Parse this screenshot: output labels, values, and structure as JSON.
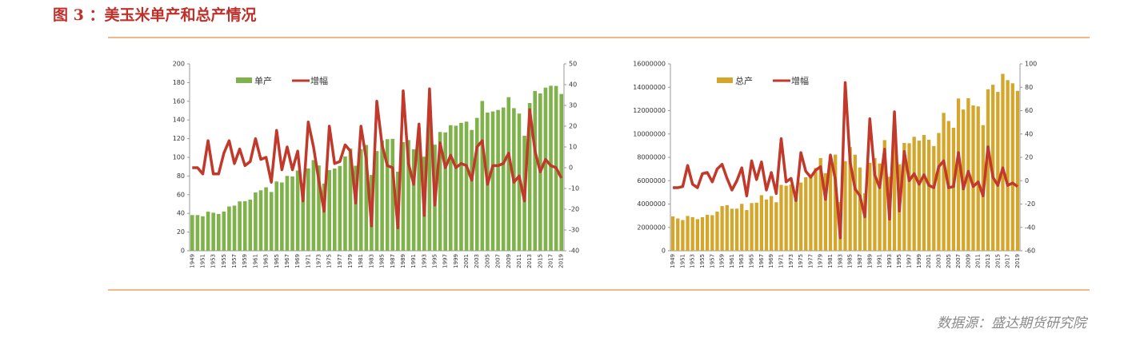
{
  "title": "图 3 ：美玉米单产和总产情况",
  "source": "数据源：盛达期货研究院",
  "charts": [
    {
      "chart_data": {
        "type": "bar-line",
        "categories": [
          "1949",
          null,
          "1951",
          null,
          "1953",
          null,
          "1955",
          null,
          "1957",
          null,
          "1959",
          null,
          "1961",
          null,
          "1963",
          null,
          "1965",
          null,
          "1967",
          null,
          "1969",
          null,
          "1971",
          null,
          "1973",
          null,
          "1975",
          null,
          "1977",
          null,
          "1979",
          null,
          "1981",
          null,
          "1983",
          null,
          "1985",
          null,
          "1987",
          null,
          "1989",
          null,
          "1991",
          null,
          "1993",
          null,
          "1995",
          null,
          "1997",
          null,
          "1999",
          null,
          "2001",
          null,
          "2003",
          null,
          "2005",
          null,
          "2007",
          null,
          "2009",
          null,
          "2011",
          null,
          "2013",
          null,
          "2015",
          null,
          "2017",
          null,
          "2019"
        ],
        "series": [
          {
            "name": "单产",
            "type": "bar",
            "color": "#7fb24a",
            "values": [
              38.2,
              38.2,
              36.9,
              41.8,
              40.7,
              39.4,
              42.0,
              47.4,
              48.3,
              52.8,
              53.1,
              54.7,
              62.4,
              64.7,
              67.9,
              62.9,
              74.1,
              73.1,
              80.1,
              79.5,
              85.9,
              72.4,
              88.1,
              97.0,
              91.3,
              71.9,
              86.4,
              88.0,
              90.8,
              101.0,
              109.5,
              91.0,
              108.9,
              113.2,
              81.1,
              106.7,
              118.0,
              119.4,
              119.8,
              84.6,
              116.3,
              118.5,
              108.6,
              131.5,
              100.7,
              138.6,
              113.5,
              127.1,
              126.7,
              134.4,
              133.8,
              136.9,
              138.2,
              129.3,
              142.2,
              160.3,
              147.9,
              149.1,
              150.7,
              153.3,
              164.4,
              152.6,
              146.8,
              123.1,
              158.1,
              171.0,
              168.4,
              174.6,
              176.6,
              176.4,
              167.8
            ]
          },
          {
            "name": "增幅",
            "type": "line",
            "axis": "y2",
            "color": "#c0392b",
            "values": [
              0,
              0,
              -3,
              13,
              -3,
              -3,
              7,
              13,
              2,
              9,
              1,
              3,
              14,
              4,
              5,
              -7,
              18,
              -1,
              10,
              -1,
              8,
              -16,
              22,
              10,
              -6,
              -21,
              20,
              2,
              3,
              11,
              8,
              -17,
              20,
              4,
              -28,
              32,
              11,
              1,
              0,
              -29,
              37,
              2,
              -8,
              21,
              -23,
              38,
              -18,
              12,
              0,
              6,
              0,
              2,
              1,
              -6,
              10,
              13,
              -8,
              1,
              1,
              2,
              7,
              -7,
              -4,
              -16,
              28,
              8,
              -2,
              4,
              1,
              0,
              -5
            ]
          }
        ],
        "ylim": [
          0,
          200
        ],
        "yticks": [
          0,
          20,
          40,
          60,
          80,
          100,
          120,
          140,
          160,
          180,
          200
        ],
        "y2lim": [
          -40,
          50
        ],
        "y2ticks": [
          -40,
          -30,
          -20,
          -10,
          0,
          10,
          20,
          30,
          40,
          50
        ]
      }
    },
    {
      "chart_data": {
        "type": "bar-line",
        "categories": [
          "1949",
          null,
          "1951",
          null,
          "1953",
          null,
          "1955",
          null,
          "1957",
          null,
          "1959",
          null,
          "1961",
          null,
          "1963",
          null,
          "1965",
          null,
          "1967",
          null,
          "1969",
          null,
          "1971",
          null,
          "1973",
          null,
          "1975",
          null,
          "1977",
          null,
          "1979",
          null,
          "1981",
          null,
          "1983",
          null,
          "1985",
          null,
          "1987",
          null,
          "1989",
          null,
          "1991",
          null,
          "1993",
          null,
          "1995",
          null,
          "1997",
          null,
          "1999",
          null,
          "2001",
          null,
          "2003",
          null,
          "2005",
          null,
          "2007",
          null,
          "2009",
          null,
          "2011",
          null,
          "2013",
          null,
          "2015",
          null,
          "2017",
          null,
          "2019"
        ],
        "series": [
          {
            "name": "总产",
            "type": "bar",
            "color": "#d4a72c",
            "values": [
              2946000,
              2764000,
              2629000,
              2981000,
              2882000,
              2708000,
              2873000,
              3075000,
              3045000,
              3356000,
              3825000,
              3907000,
              3598000,
              3606000,
              4019000,
              3484000,
              4084000,
              4117000,
              4760000,
              4393000,
              4687000,
              4152000,
              5641000,
              5573000,
              5671000,
              4701000,
              5841000,
              6289000,
              6505000,
              7087000,
              7939000,
              6639000,
              8119000,
              8235000,
              4174000,
              7672000,
              8875000,
              8226000,
              7131000,
              4929000,
              7531000,
              7934000,
              7475000,
              9477000,
              6336000,
              10051000,
              7400000,
              9233000,
              9207000,
              9759000,
              9431000,
              9915000,
              9503000,
              8967000,
              10087000,
              11806000,
              11112000,
              10531000,
              13038000,
              12092000,
              13067000,
              12447000,
              12360000,
              10755000,
              13829000,
              14216000,
              13602000,
              15148000,
              14609000,
              14340000,
              13692000
            ]
          },
          {
            "name": "增幅",
            "type": "line",
            "axis": "y2",
            "color": "#c0392b",
            "values": [
              -6,
              -6,
              -5,
              13,
              -3,
              -6,
              6,
              7,
              -1,
              10,
              14,
              2,
              -8,
              0,
              11,
              -13,
              17,
              1,
              16,
              -8,
              7,
              -11,
              36,
              -1,
              2,
              -17,
              24,
              8,
              3,
              9,
              12,
              -16,
              22,
              1,
              -49,
              84,
              16,
              -7,
              -13,
              -31,
              53,
              5,
              -6,
              27,
              -33,
              59,
              -26,
              25,
              0,
              6,
              -3,
              5,
              -4,
              -6,
              12,
              17,
              -6,
              -5,
              24,
              -7,
              8,
              -5,
              -1,
              -13,
              29,
              3,
              -4,
              11,
              -4,
              -2,
              -5
            ]
          }
        ],
        "ylim": [
          0,
          16000000
        ],
        "yticks": [
          0,
          2000000,
          4000000,
          6000000,
          8000000,
          10000000,
          12000000,
          14000000,
          16000000
        ],
        "y2lim": [
          -60,
          100
        ],
        "y2ticks": [
          -60,
          -40,
          -20,
          0,
          20,
          40,
          60,
          80,
          100
        ]
      }
    }
  ]
}
